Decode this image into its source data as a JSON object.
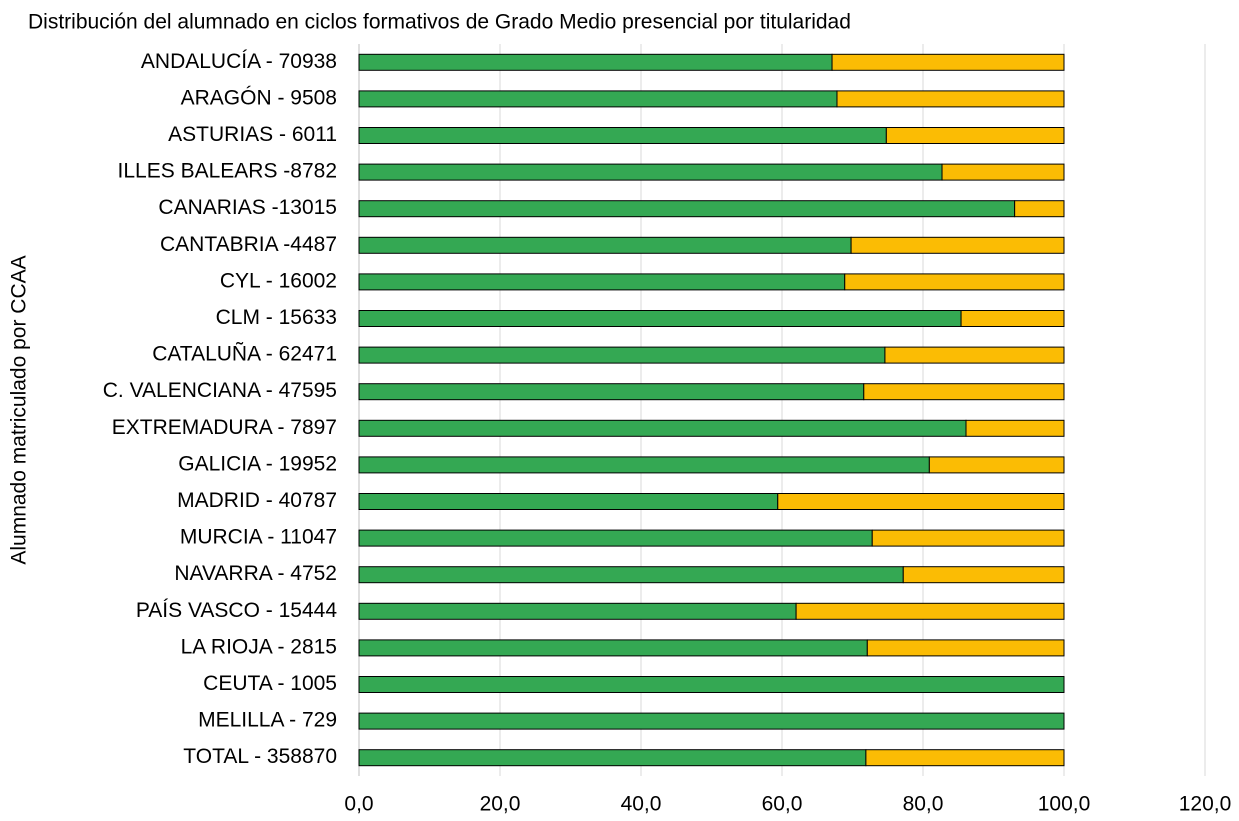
{
  "chart_data": {
    "type": "stacked-bar-horizontal",
    "title": "Distribución del alumnado en ciclos formativos de Grado Medio presencial por titularidad",
    "y_label": "Alumnado matriculado por CCAA",
    "categories": [
      "ANDALUCÍA - 70938",
      "ARAGÓN - 9508",
      "ASTURIAS - 6011",
      "ILLES BALEARS -8782",
      "CANARIAS -13015",
      "CANTABRIA -4487",
      "CYL - 16002",
      "CLM - 15633",
      "CATALUÑA - 62471",
      "C. VALENCIANA - 47595",
      "EXTREMADURA - 7897",
      "GALICIA - 19952",
      "MADRID - 40787",
      "MURCIA - 11047",
      "NAVARRA - 4752",
      "PAÍS VASCO - 15444",
      "LA RIOJA - 2815",
      "CEUTA - 1005",
      "MELILLA - 729",
      "TOTAL - 358870"
    ],
    "series": [
      {
        "color": "#34a853",
        "values": [
          67.1,
          67.8,
          74.8,
          82.7,
          93.0,
          69.8,
          68.9,
          85.4,
          74.6,
          71.6,
          86.1,
          80.9,
          59.4,
          72.8,
          77.2,
          62.0,
          72.1,
          100,
          100,
          71.9
        ]
      },
      {
        "color": "#fbbc04",
        "values": [
          32.9,
          32.2,
          25.2,
          17.3,
          7.0,
          30.2,
          31.1,
          14.6,
          25.4,
          28.4,
          13.9,
          19.1,
          40.6,
          27.2,
          22.8,
          38.0,
          27.9,
          0,
          0,
          28.1
        ]
      }
    ],
    "xlim": [
      0,
      120
    ],
    "xticks": [
      {
        "value": 0,
        "label": "0,0"
      },
      {
        "value": 20,
        "label": "20,0"
      },
      {
        "value": 40,
        "label": "40,0"
      },
      {
        "value": 60,
        "label": "60,0"
      },
      {
        "value": 80,
        "label": "80,0"
      },
      {
        "value": 100,
        "label": "100,0"
      },
      {
        "value": 120,
        "label": "120,0"
      }
    ],
    "grid": true
  }
}
